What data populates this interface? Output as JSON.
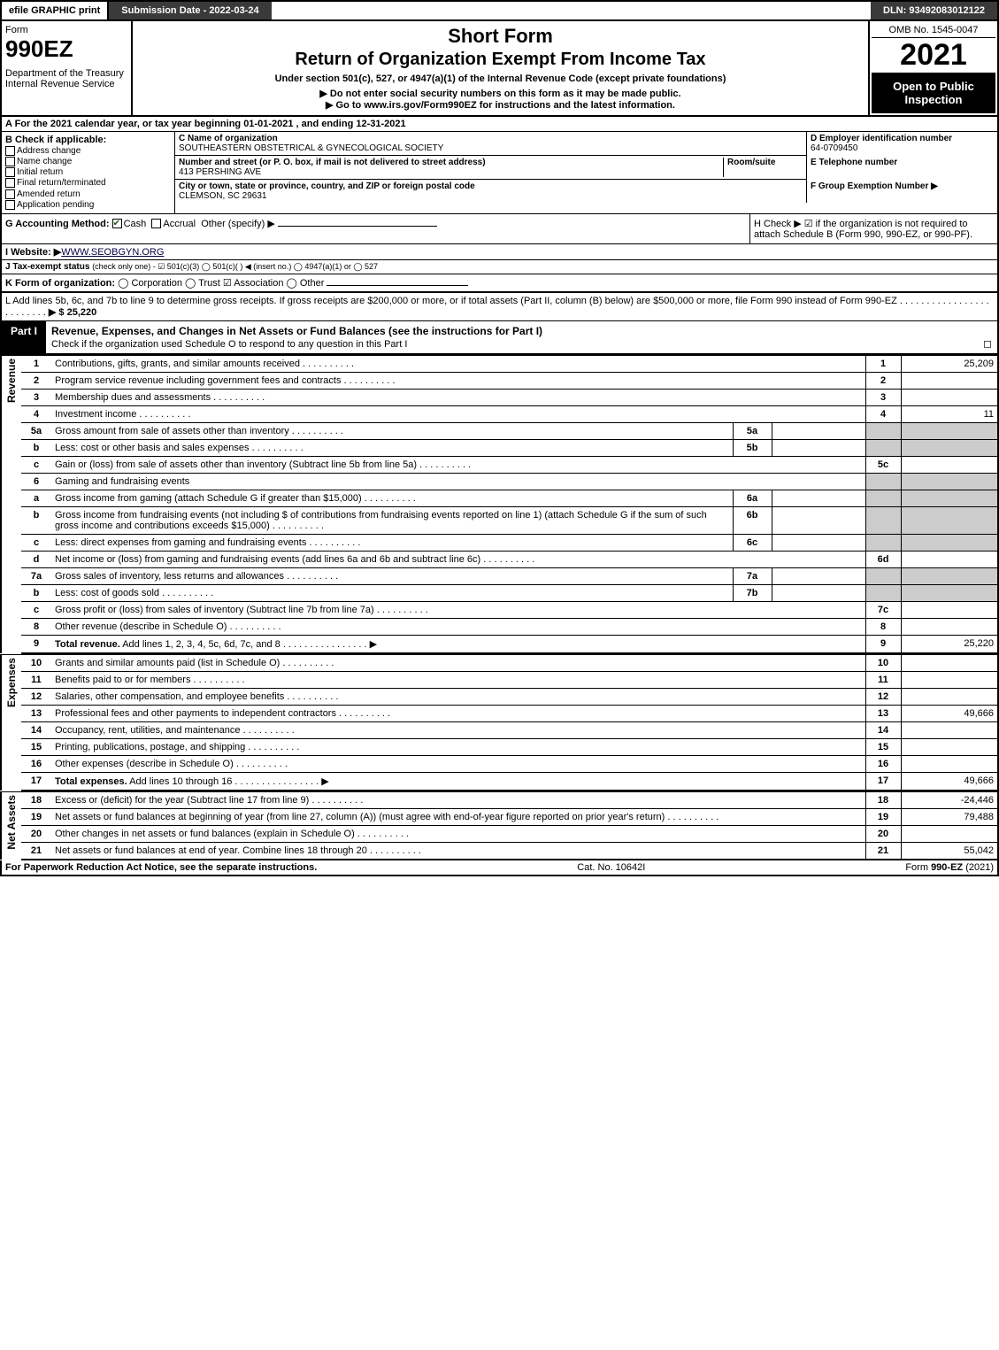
{
  "topbar": {
    "efile": "efile GRAPHIC print",
    "submission": "Submission Date - 2022-03-24",
    "dln": "DLN: 93492083012122"
  },
  "header": {
    "form_word": "Form",
    "form_number": "990EZ",
    "dept": "Department of the Treasury\nInternal Revenue Service",
    "short": "Short Form",
    "return_title": "Return of Organization Exempt From Income Tax",
    "subtitle": "Under section 501(c), 527, or 4947(a)(1) of the Internal Revenue Code (except private foundations)",
    "warn": "▶ Do not enter social security numbers on this form as it may be made public.",
    "goto": "▶ Go to www.irs.gov/Form990EZ for instructions and the latest information.",
    "omb": "OMB No. 1545-0047",
    "year": "2021",
    "open": "Open to Public Inspection"
  },
  "section_a": "A  For the 2021 calendar year, or tax year beginning 01-01-2021 , and ending 12-31-2021",
  "B": {
    "hdr": "B  Check if applicable:",
    "items": [
      "Address change",
      "Name change",
      "Initial return",
      "Final return/terminated",
      "Amended return",
      "Application pending"
    ]
  },
  "C": {
    "name_lbl": "C Name of organization",
    "name_val": "SOUTHEASTERN OBSTETRICAL & GYNECOLOGICAL SOCIETY",
    "addr_lbl": "Number and street (or P. O. box, if mail is not delivered to street address)",
    "addr_val": "413 PERSHING AVE",
    "room_lbl": "Room/suite",
    "city_lbl": "City or town, state or province, country, and ZIP or foreign postal code",
    "city_val": "CLEMSON, SC  29631"
  },
  "D": {
    "lbl": "D Employer identification number",
    "val": "64-0709450"
  },
  "E": {
    "lbl": "E Telephone number",
    "val": ""
  },
  "F": {
    "lbl": "F Group Exemption Number  ▶",
    "val": ""
  },
  "G": {
    "lbl": "G Accounting Method:",
    "cash": "Cash",
    "accrual": "Accrual",
    "other": "Other (specify) ▶"
  },
  "H": {
    "txt": "H  Check ▶ ☑ if the organization is not required to attach Schedule B (Form 990, 990-EZ, or 990-PF)."
  },
  "I": {
    "lbl": "I Website: ▶",
    "val": "WWW.SEOBGYN.ORG"
  },
  "J": {
    "lbl": "J Tax-exempt status",
    "note": "(check only one) - ☑ 501(c)(3) ◯ 501(c)(  ) ◀ (insert no.) ◯ 4947(a)(1) or ◯ 527"
  },
  "K": {
    "lbl": "K Form of organization:",
    "opts": "◯ Corporation  ◯ Trust  ☑ Association  ◯ Other"
  },
  "L": {
    "txt": "L Add lines 5b, 6c, and 7b to line 9 to determine gross receipts. If gross receipts are $200,000 or more, or if total assets (Part II, column (B) below) are $500,000 or more, file Form 990 instead of Form 990-EZ",
    "arrow": "▶ $ 25,220"
  },
  "part1": {
    "lbl": "Part I",
    "title": "Revenue, Expenses, and Changes in Net Assets or Fund Balances (see the instructions for Part I)",
    "check": "Check if the organization used Schedule O to respond to any question in this Part I",
    "check_box": "◻"
  },
  "sections": {
    "revenue": "Revenue",
    "expenses": "Expenses",
    "netassets": "Net Assets"
  },
  "lines": [
    {
      "n": "1",
      "desc": "Contributions, gifts, grants, and similar amounts received",
      "r": "1",
      "amt": "25,209"
    },
    {
      "n": "2",
      "desc": "Program service revenue including government fees and contracts",
      "r": "2",
      "amt": ""
    },
    {
      "n": "3",
      "desc": "Membership dues and assessments",
      "r": "3",
      "amt": ""
    },
    {
      "n": "4",
      "desc": "Investment income",
      "r": "4",
      "amt": "11"
    },
    {
      "n": "5a",
      "desc": "Gross amount from sale of assets other than inventory",
      "sub": "5a",
      "mid": ""
    },
    {
      "n": "b",
      "desc": "Less: cost or other basis and sales expenses",
      "sub": "5b",
      "mid": ""
    },
    {
      "n": "c",
      "desc": "Gain or (loss) from sale of assets other than inventory (Subtract line 5b from line 5a)",
      "r": "5c",
      "amt": ""
    },
    {
      "n": "6",
      "desc": "Gaming and fundraising events"
    },
    {
      "n": "a",
      "desc": "Gross income from gaming (attach Schedule G if greater than $15,000)",
      "sub": "6a",
      "mid": ""
    },
    {
      "n": "b",
      "desc": "Gross income from fundraising events (not including $             of contributions from fundraising events reported on line 1) (attach Schedule G if the sum of such gross income and contributions exceeds $15,000)",
      "sub": "6b",
      "mid": ""
    },
    {
      "n": "c",
      "desc": "Less: direct expenses from gaming and fundraising events",
      "sub": "6c",
      "mid": ""
    },
    {
      "n": "d",
      "desc": "Net income or (loss) from gaming and fundraising events (add lines 6a and 6b and subtract line 6c)",
      "r": "6d",
      "amt": ""
    },
    {
      "n": "7a",
      "desc": "Gross sales of inventory, less returns and allowances",
      "sub": "7a",
      "mid": ""
    },
    {
      "n": "b",
      "desc": "Less: cost of goods sold",
      "sub": "7b",
      "mid": ""
    },
    {
      "n": "c",
      "desc": "Gross profit or (loss) from sales of inventory (Subtract line 7b from line 7a)",
      "r": "7c",
      "amt": ""
    },
    {
      "n": "8",
      "desc": "Other revenue (describe in Schedule O)",
      "r": "8",
      "amt": ""
    },
    {
      "n": "9",
      "desc": "Total revenue. Add lines 1, 2, 3, 4, 5c, 6d, 7c, and 8",
      "r": "9",
      "amt": "25,220",
      "bold": true,
      "arrow": true
    }
  ],
  "exp_lines": [
    {
      "n": "10",
      "desc": "Grants and similar amounts paid (list in Schedule O)",
      "r": "10",
      "amt": ""
    },
    {
      "n": "11",
      "desc": "Benefits paid to or for members",
      "r": "11",
      "amt": ""
    },
    {
      "n": "12",
      "desc": "Salaries, other compensation, and employee benefits",
      "r": "12",
      "amt": ""
    },
    {
      "n": "13",
      "desc": "Professional fees and other payments to independent contractors",
      "r": "13",
      "amt": "49,666"
    },
    {
      "n": "14",
      "desc": "Occupancy, rent, utilities, and maintenance",
      "r": "14",
      "amt": ""
    },
    {
      "n": "15",
      "desc": "Printing, publications, postage, and shipping",
      "r": "15",
      "amt": ""
    },
    {
      "n": "16",
      "desc": "Other expenses (describe in Schedule O)",
      "r": "16",
      "amt": ""
    },
    {
      "n": "17",
      "desc": "Total expenses. Add lines 10 through 16",
      "r": "17",
      "amt": "49,666",
      "bold": true,
      "arrow": true
    }
  ],
  "na_lines": [
    {
      "n": "18",
      "desc": "Excess or (deficit) for the year (Subtract line 17 from line 9)",
      "r": "18",
      "amt": "-24,446"
    },
    {
      "n": "19",
      "desc": "Net assets or fund balances at beginning of year (from line 27, column (A)) (must agree with end-of-year figure reported on prior year's return)",
      "r": "19",
      "amt": "79,488"
    },
    {
      "n": "20",
      "desc": "Other changes in net assets or fund balances (explain in Schedule O)",
      "r": "20",
      "amt": ""
    },
    {
      "n": "21",
      "desc": "Net assets or fund balances at end of year. Combine lines 18 through 20",
      "r": "21",
      "amt": "55,042"
    }
  ],
  "footer": {
    "left": "For Paperwork Reduction Act Notice, see the separate instructions.",
    "mid": "Cat. No. 10642I",
    "right": "Form 990-EZ (2021)"
  }
}
